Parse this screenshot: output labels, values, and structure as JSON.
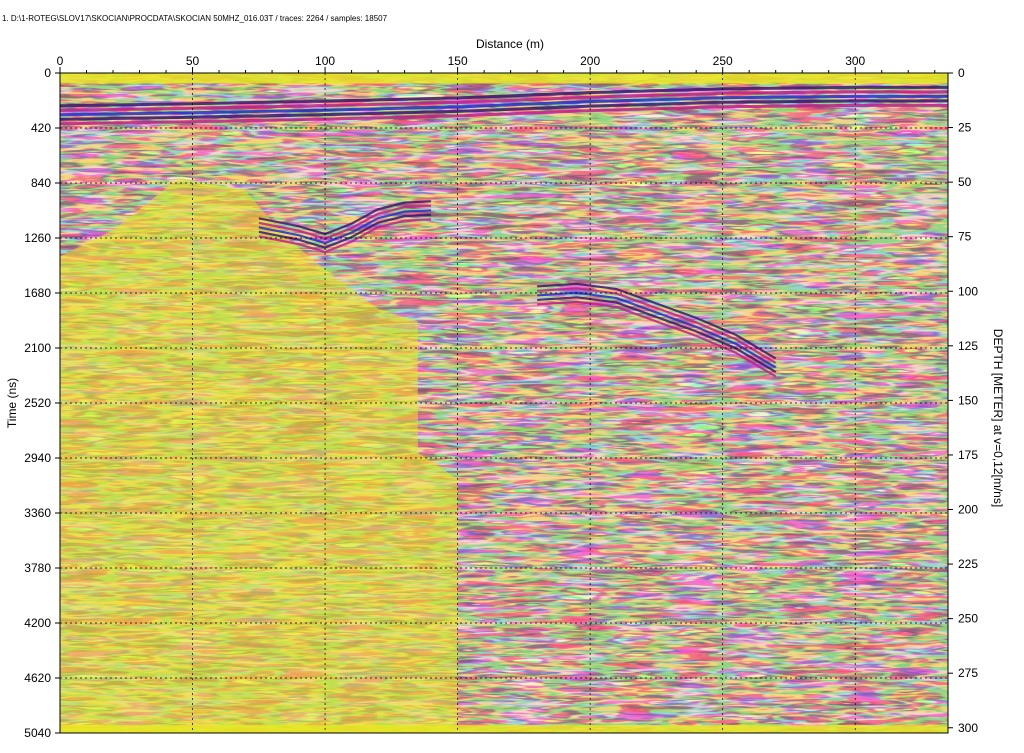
{
  "header": {
    "file_info": "1. D:\\1-ROTEG\\SLOV17\\SKOCIAN\\PROCDATA\\SKOCIAN 50MHZ_016.03T / traces: 2264 / samples: 18507"
  },
  "colors": {
    "background": "#ffffff",
    "plot_base": "#e8e820",
    "wave_dark": "#3a1870",
    "wave_blue": "#2030c8",
    "wave_magenta": "#c0208c",
    "wave_red": "#e02828",
    "wave_green": "#40b040",
    "grid": "#000000"
  },
  "chart_data": {
    "type": "heatmap",
    "title": "",
    "xlabel": "Distance (m)",
    "ylabel": "Time (ns)",
    "y2label": "DEPTH [METER] at v=0,12[m/ns]",
    "xlim": [
      0,
      335
    ],
    "ylim": [
      0,
      5040
    ],
    "y2lim": [
      0,
      302.4
    ],
    "x_ticks": [
      "0",
      "50",
      "100",
      "150",
      "200",
      "250",
      "300"
    ],
    "y_ticks": [
      "0",
      "420",
      "840",
      "1260",
      "1680",
      "2100",
      "2520",
      "2940",
      "3360",
      "3780",
      "4200",
      "4620",
      "5040"
    ],
    "y2_ticks": [
      "0",
      "25",
      "50",
      "75",
      "100",
      "125",
      "150",
      "175",
      "200",
      "225",
      "250",
      "275",
      "300"
    ],
    "grid": "dashed",
    "reflectors": [
      {
        "x": [
          0,
          50,
          100,
          150,
          200,
          250,
          300,
          335
        ],
        "y": [
          250,
          235,
          215,
          190,
          150,
          120,
          110,
          110
        ]
      },
      {
        "x": [
          75,
          90,
          100,
          110,
          120,
          130,
          140
        ],
        "y": [
          1110,
          1170,
          1230,
          1150,
          1040,
          990,
          980
        ]
      },
      {
        "x": [
          180,
          195,
          210,
          225,
          240,
          255,
          270
        ],
        "y": [
          1630,
          1610,
          1650,
          1760,
          1870,
          2000,
          2180
        ]
      }
    ]
  }
}
